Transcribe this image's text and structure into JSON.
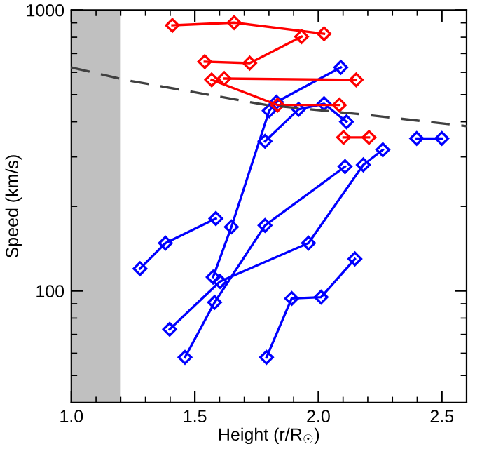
{
  "chart_data": {
    "type": "line",
    "xlabel": "Height (r/R$_{☉}$)",
    "ylabel": "Speed (km/s)",
    "log": "y",
    "xlim": [
      1.0,
      2.6
    ],
    "xticks": [
      {
        "value": 1.0,
        "label": "1.0"
      },
      {
        "value": 1.5,
        "label": "1.5"
      },
      {
        "value": 2.0,
        "label": "2.0"
      },
      {
        "value": 2.5,
        "label": "2.5"
      }
    ],
    "ylim": [
      40,
      1000
    ],
    "yticks": [
      100,
      1000
    ],
    "grid": false,
    "legend": false,
    "marker": "diamond",
    "bands": [
      {
        "axis": "x",
        "from": 1.0,
        "to": 1.2,
        "color": "#c0c0c0"
      }
    ],
    "series": [
      {
        "color": "#0000ff",
        "x": [
          1.574,
          1.648,
          1.801,
          1.83,
          2.091
        ],
        "values": [
          112,
          169,
          438,
          470,
          625
        ]
      },
      {
        "color": "#0000ff",
        "x": [
          1.784,
          1.92,
          2.023,
          2.114
        ],
        "values": [
          341,
          443,
          464,
          400
        ]
      },
      {
        "color": "#0000ff",
        "x": [
          1.278,
          1.381,
          1.585
        ],
        "values": [
          120,
          148,
          181
        ]
      },
      {
        "color": "#0000ff",
        "x": [
          1.46,
          1.58,
          1.784,
          2.108
        ],
        "values": [
          58,
          91,
          171,
          277
        ]
      },
      {
        "color": "#0000ff",
        "x": [
          1.398,
          1.602,
          1.96,
          2.182,
          2.261
        ],
        "values": [
          73,
          108,
          148,
          281,
          318
        ]
      },
      {
        "color": "#0000ff",
        "x": [
          1.79,
          1.892,
          2.011,
          2.148
        ],
        "values": [
          58,
          94,
          95,
          130
        ]
      },
      {
        "color": "#0000ff",
        "x": [
          2.398,
          2.5
        ],
        "values": [
          349,
          349
        ]
      },
      {
        "color": "#ff0000",
        "x": [
          1.409,
          1.659,
          2.023
        ],
        "values": [
          882,
          902,
          823
        ]
      },
      {
        "color": "#ff0000",
        "x": [
          1.54,
          1.722,
          1.932
        ],
        "values": [
          655,
          647,
          804
        ]
      },
      {
        "color": "#ff0000",
        "x": [
          1.619,
          2.153
        ],
        "values": [
          570,
          564
        ]
      },
      {
        "color": "#ff0000",
        "x": [
          1.568,
          1.835,
          2.085
        ],
        "values": [
          564,
          459,
          459
        ]
      },
      {
        "color": "#ff0000",
        "x": [
          2.102,
          2.205
        ],
        "values": [
          352,
          352
        ]
      },
      {
        "color": "#404040",
        "marker": "none",
        "line_style": "dashed",
        "x": [
          1.0,
          1.222,
          1.79,
          2.188,
          2.6
        ],
        "values": [
          625,
          563,
          459,
          424,
          386
        ]
      }
    ]
  }
}
